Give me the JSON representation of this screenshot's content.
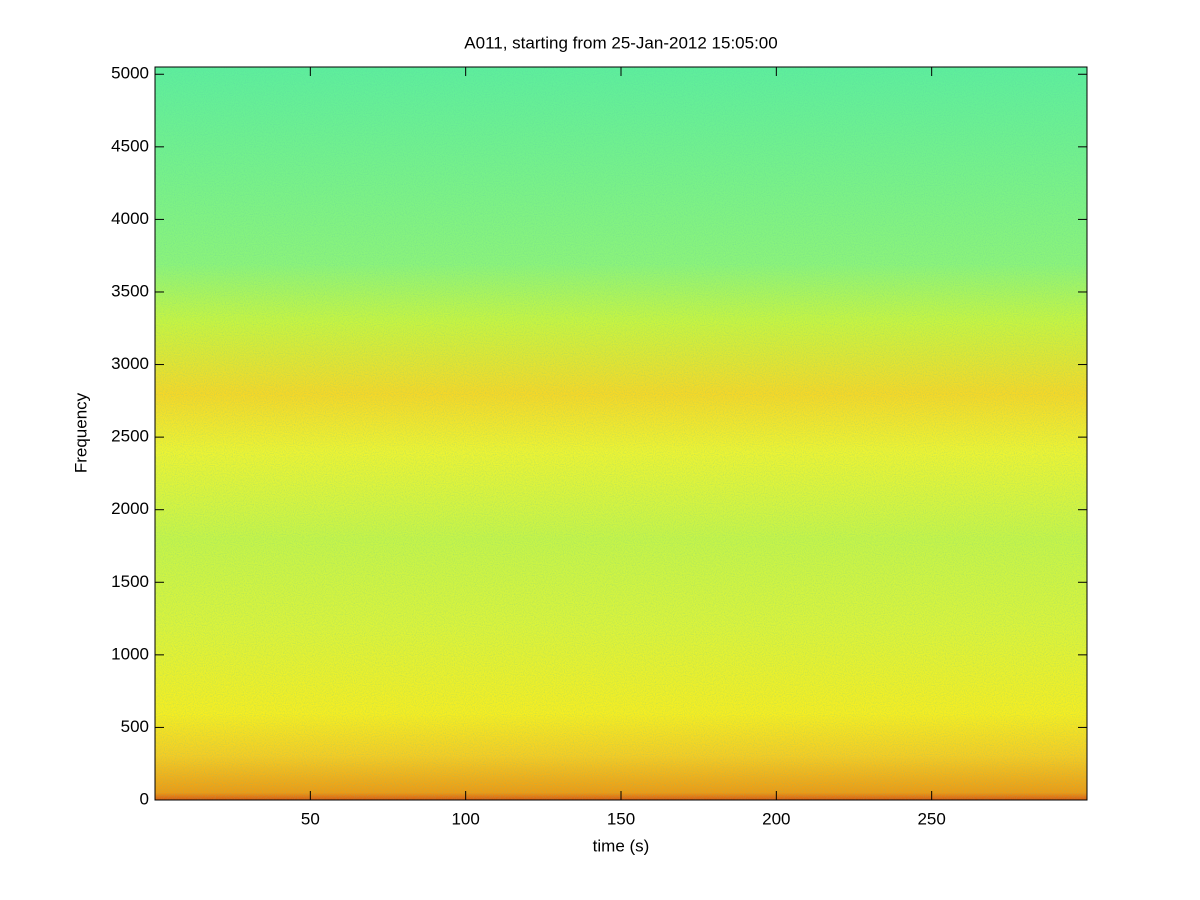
{
  "chart_data": {
    "type": "spectrogram",
    "title": "A011, starting from 25-Jan-2012 15:05:00",
    "x_label": "time (s)",
    "y_label": "Frequency",
    "xlim": [
      0,
      300
    ],
    "xticks": [
      50,
      100,
      150,
      200,
      250
    ],
    "ylim": [
      0,
      5050
    ],
    "yticks": [
      0,
      500,
      1000,
      1500,
      2000,
      2500,
      3000,
      3500,
      4000,
      4500,
      5000
    ]
  }
}
